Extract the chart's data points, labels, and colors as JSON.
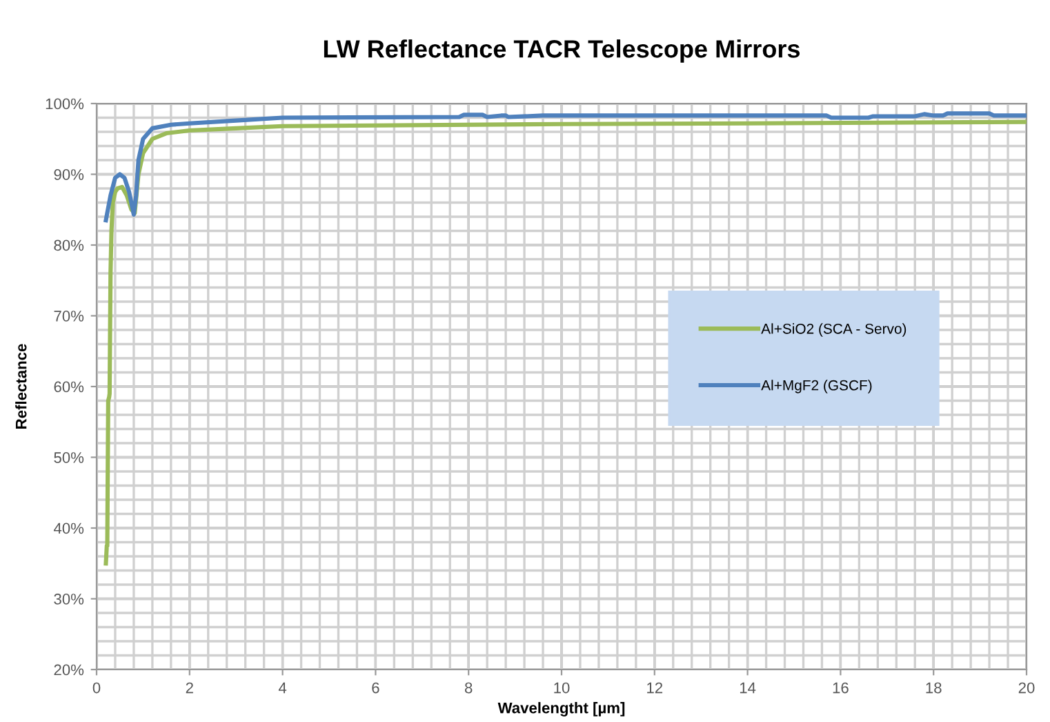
{
  "chart_data": {
    "type": "line",
    "title": "LW Reflectance TACR Telescope Mirrors",
    "xlabel": "Wavelengtht [µm]",
    "ylabel": "Reflectance",
    "series": [
      {
        "name": "Al+SiO2 (SCA - Servo)",
        "color": "#9bbb59",
        "x": [
          0.2,
          0.22,
          0.23,
          0.25,
          0.27,
          0.28,
          0.3,
          0.32,
          0.35,
          0.4,
          0.45,
          0.55,
          0.65,
          0.75,
          0.82,
          0.9,
          1.0,
          1.2,
          1.5,
          2,
          3,
          4,
          6,
          10,
          14,
          20
        ],
        "values": [
          35,
          37.5,
          37.5,
          58,
          58.5,
          59,
          76,
          82,
          86,
          87.5,
          88,
          88.2,
          87,
          85,
          84.5,
          90,
          93,
          95,
          95.8,
          96.2,
          96.5,
          96.8,
          96.9,
          97.1,
          97.2,
          97.4
        ]
      },
      {
        "name": "Al+MgF2 (GSCF)",
        "color": "#4f81bd",
        "x": [
          0.2,
          0.3,
          0.4,
          0.5,
          0.6,
          0.7,
          0.8,
          0.85,
          0.9,
          1.0,
          1.2,
          1.6,
          2,
          3,
          4,
          7.8,
          7.9,
          8.3,
          8.4,
          8.7,
          8.8,
          8.85,
          9.6,
          15.7,
          15.8,
          16.6,
          16.7,
          17.6,
          17.8,
          18.0,
          18.2,
          18.3,
          19.2,
          19.3,
          20
        ],
        "values": [
          83.5,
          87,
          89.5,
          90,
          89.5,
          87.5,
          84.3,
          87,
          92,
          95,
          96.5,
          97,
          97.2,
          97.6,
          98.0,
          98.1,
          98.4,
          98.4,
          98.1,
          98.3,
          98.3,
          98.1,
          98.3,
          98.3,
          98.0,
          98.0,
          98.2,
          98.2,
          98.5,
          98.3,
          98.3,
          98.6,
          98.6,
          98.3,
          98.3
        ]
      }
    ],
    "xlim": [
      0,
      20
    ],
    "xticks": [
      0,
      {
        "value": 0.4,
        "label": null
      },
      {
        "value": 0.8,
        "label": null
      },
      {
        "value": 1.2,
        "label": null
      },
      {
        "value": 1.6,
        "label": null
      },
      2,
      {
        "value": 2.4,
        "label": null
      },
      {
        "value": 2.8,
        "label": null
      },
      {
        "value": 3.2,
        "label": null
      },
      {
        "value": 3.6,
        "label": null
      },
      4,
      {
        "value": 4.4,
        "label": null
      },
      {
        "value": 4.8,
        "label": null
      },
      {
        "value": 5.2,
        "label": null
      },
      {
        "value": 5.6,
        "label": null
      },
      6,
      {
        "value": 6.4,
        "label": null
      },
      {
        "value": 6.8,
        "label": null
      },
      {
        "value": 7.2,
        "label": null
      },
      {
        "value": 7.6,
        "label": null
      },
      8,
      {
        "value": 8.4,
        "label": null
      },
      {
        "value": 8.8,
        "label": null
      },
      {
        "value": 9.2,
        "label": null
      },
      {
        "value": 9.6,
        "label": null
      },
      10,
      {
        "value": 10.4,
        "label": null
      },
      {
        "value": 10.8,
        "label": null
      },
      {
        "value": 11.2,
        "label": null
      },
      {
        "value": 11.6,
        "label": null
      },
      12,
      {
        "value": 12.4,
        "label": null
      },
      {
        "value": 12.8,
        "label": null
      },
      {
        "value": 13.2,
        "label": null
      },
      {
        "value": 13.6,
        "label": null
      },
      14,
      {
        "value": 14.4,
        "label": null
      },
      {
        "value": 14.8,
        "label": null
      },
      {
        "value": 15.2,
        "label": null
      },
      {
        "value": 15.6,
        "label": null
      },
      16,
      {
        "value": 16.4,
        "label": null
      },
      {
        "value": 16.8,
        "label": null
      },
      {
        "value": 17.2,
        "label": null
      },
      {
        "value": 17.6,
        "label": null
      },
      18,
      {
        "value": 18.4,
        "label": null
      },
      {
        "value": 18.8,
        "label": null
      },
      {
        "value": 19.2,
        "label": null
      },
      {
        "value": 19.6,
        "label": null
      },
      20
    ],
    "ylim": [
      20,
      100
    ],
    "yticks": [
      {
        "value": 20,
        "label": "20%"
      },
      {
        "value": 22,
        "label": null
      },
      {
        "value": 24,
        "label": null
      },
      {
        "value": 26,
        "label": null
      },
      {
        "value": 28,
        "label": null
      },
      {
        "value": 30,
        "label": "30%"
      },
      {
        "value": 32,
        "label": null
      },
      {
        "value": 34,
        "label": null
      },
      {
        "value": 36,
        "label": null
      },
      {
        "value": 38,
        "label": null
      },
      {
        "value": 40,
        "label": "40%"
      },
      {
        "value": 42,
        "label": null
      },
      {
        "value": 44,
        "label": null
      },
      {
        "value": 46,
        "label": null
      },
      {
        "value": 48,
        "label": null
      },
      {
        "value": 50,
        "label": "50%"
      },
      {
        "value": 52,
        "label": null
      },
      {
        "value": 54,
        "label": null
      },
      {
        "value": 56,
        "label": null
      },
      {
        "value": 58,
        "label": null
      },
      {
        "value": 60,
        "label": "60%"
      },
      {
        "value": 62,
        "label": null
      },
      {
        "value": 64,
        "label": null
      },
      {
        "value": 66,
        "label": null
      },
      {
        "value": 68,
        "label": null
      },
      {
        "value": 70,
        "label": "70%"
      },
      {
        "value": 72,
        "label": null
      },
      {
        "value": 74,
        "label": null
      },
      {
        "value": 76,
        "label": null
      },
      {
        "value": 78,
        "label": null
      },
      {
        "value": 80,
        "label": "80%"
      },
      {
        "value": 82,
        "label": null
      },
      {
        "value": 84,
        "label": null
      },
      {
        "value": 86,
        "label": null
      },
      {
        "value": 88,
        "label": null
      },
      {
        "value": 90,
        "label": "90%"
      },
      {
        "value": 92,
        "label": null
      },
      {
        "value": 94,
        "label": null
      },
      {
        "value": 96,
        "label": null
      },
      {
        "value": 98,
        "label": null
      },
      {
        "value": 100,
        "label": "100%"
      }
    ],
    "grid": true,
    "legend": "right",
    "marker": "none",
    "line_style": "solid"
  }
}
